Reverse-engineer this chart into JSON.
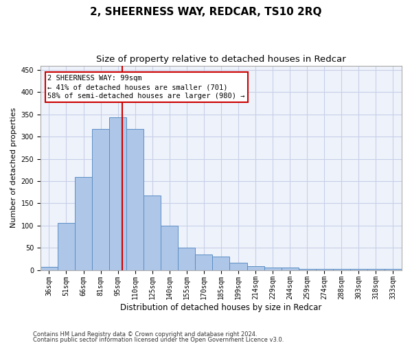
{
  "title1": "2, SHEERNESS WAY, REDCAR, TS10 2RQ",
  "title2": "Size of property relative to detached houses in Redcar",
  "xlabel": "Distribution of detached houses by size in Redcar",
  "ylabel": "Number of detached properties",
  "categories": [
    "36sqm",
    "51sqm",
    "66sqm",
    "81sqm",
    "95sqm",
    "110sqm",
    "125sqm",
    "140sqm",
    "155sqm",
    "170sqm",
    "185sqm",
    "199sqm",
    "214sqm",
    "229sqm",
    "244sqm",
    "259sqm",
    "274sqm",
    "288sqm",
    "303sqm",
    "318sqm",
    "333sqm"
  ],
  "values": [
    7,
    106,
    210,
    317,
    343,
    318,
    167,
    99,
    50,
    35,
    30,
    17,
    9,
    5,
    5,
    3,
    3,
    3,
    3,
    3,
    3
  ],
  "bar_color": "#aec6e8",
  "bar_edge_color": "#5b8ec4",
  "bar_width": 1.0,
  "red_line_x": 4.27,
  "annotation_text": "2 SHEERNESS WAY: 99sqm\n← 41% of detached houses are smaller (701)\n58% of semi-detached houses are larger (980) →",
  "annotation_box_color": "#ffffff",
  "annotation_box_edge_color": "#cc0000",
  "ylim": [
    0,
    460
  ],
  "yticks": [
    0,
    50,
    100,
    150,
    200,
    250,
    300,
    350,
    400,
    450
  ],
  "footer1": "Contains HM Land Registry data © Crown copyright and database right 2024.",
  "footer2": "Contains public sector information licensed under the Open Government Licence v3.0.",
  "bg_color": "#eef2fb",
  "grid_color": "#c8cfe8",
  "title1_fontsize": 11,
  "title2_fontsize": 9.5,
  "xlabel_fontsize": 8.5,
  "ylabel_fontsize": 8,
  "tick_fontsize": 7,
  "annotation_fontsize": 7.5,
  "footer_fontsize": 6
}
